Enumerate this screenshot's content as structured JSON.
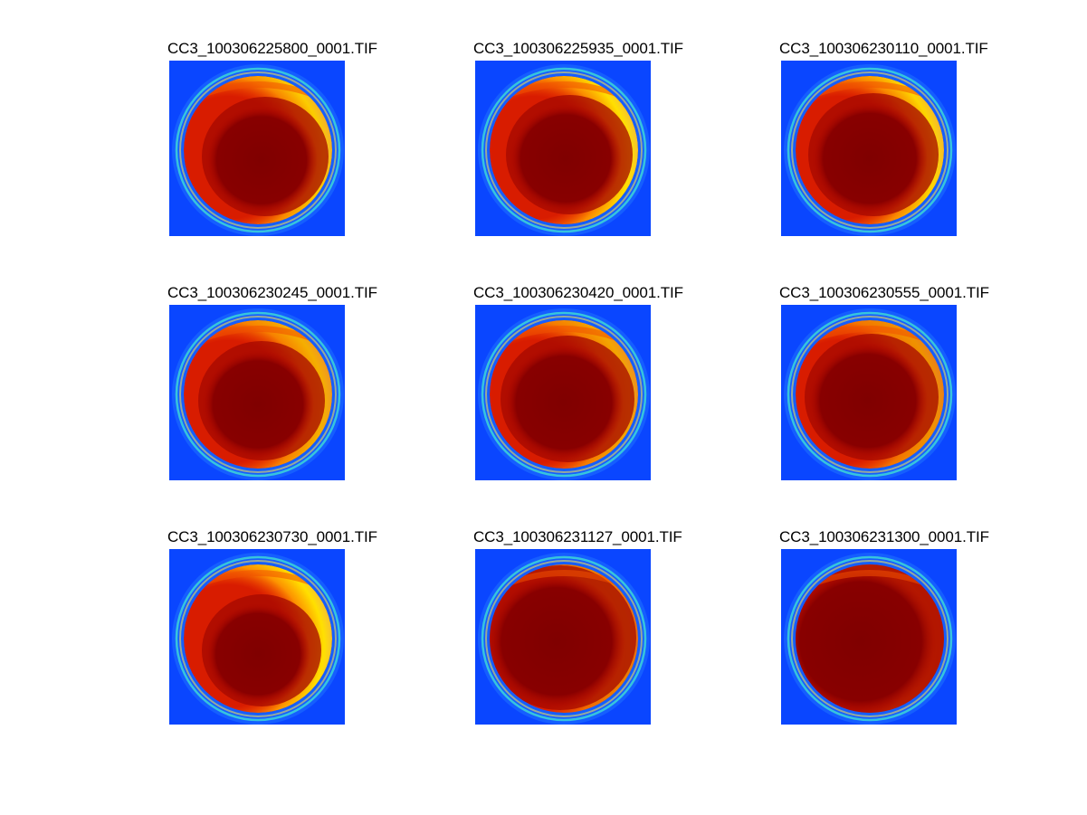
{
  "figure": {
    "background_color": "#ffffff",
    "image_background_color": "#0a46ff",
    "colormap": "jet",
    "panels": [
      {
        "title": "CC3_100306225800_0001.TIF",
        "variant": "a"
      },
      {
        "title": "CC3_100306225935_0001.TIF",
        "variant": "b"
      },
      {
        "title": "CC3_100306230110_0001.TIF",
        "variant": "c"
      },
      {
        "title": "CC3_100306230245_0001.TIF",
        "variant": "d"
      },
      {
        "title": "CC3_100306230420_0001.TIF",
        "variant": "e"
      },
      {
        "title": "CC3_100306230555_0001.TIF",
        "variant": "f"
      },
      {
        "title": "CC3_100306230730_0001.TIF",
        "variant": "g"
      },
      {
        "title": "CC3_100306231127_0001.TIF",
        "variant": "h"
      },
      {
        "title": "CC3_100306231300_0001.TIF",
        "variant": "i"
      }
    ]
  }
}
